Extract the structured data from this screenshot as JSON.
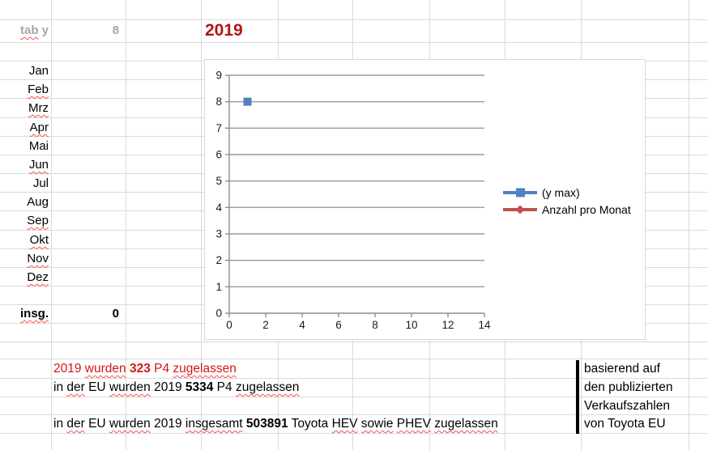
{
  "cells": {
    "tab_label_runs": [
      {
        "t": "tab",
        "sq": true
      },
      {
        "t": " y"
      }
    ],
    "tab_value": "8",
    "year_title": "2019",
    "months": [
      {
        "label": "Jan",
        "misspelled": false
      },
      {
        "label": "Feb",
        "misspelled": true
      },
      {
        "label": "Mrz",
        "misspelled": true
      },
      {
        "label": "Apr",
        "misspelled": true
      },
      {
        "label": "Mai",
        "misspelled": false
      },
      {
        "label": "Jun",
        "misspelled": true
      },
      {
        "label": "Jul",
        "misspelled": false
      },
      {
        "label": "Aug",
        "misspelled": false
      },
      {
        "label": "Sep",
        "misspelled": true
      },
      {
        "label": "Okt",
        "misspelled": true
      },
      {
        "label": "Nov",
        "misspelled": true
      },
      {
        "label": "Dez",
        "misspelled": true
      }
    ],
    "total_label_runs": [
      {
        "t": "insg.",
        "sq": true,
        "b": true
      }
    ],
    "total_value": "0"
  },
  "colors": {
    "year_red": "#b41414",
    "note_red": "#d41616",
    "muted_gray": "#a6a6a6",
    "sheet_grid": "#dadada",
    "chart_grid": "#9a9a9a",
    "chart_axis": "#8e8e8e",
    "squiggle": "#ff5050"
  },
  "chart_data": {
    "type": "scatter",
    "title": "",
    "xlabel": "",
    "ylabel": "",
    "xlim": [
      0,
      14
    ],
    "ylim": [
      0,
      9
    ],
    "x_tick_labels": [
      "0",
      "2",
      "4",
      "6",
      "8",
      "10",
      "12",
      "14"
    ],
    "y_tick_labels": [
      "0",
      "1",
      "2",
      "3",
      "4",
      "5",
      "6",
      "7",
      "8",
      "9"
    ],
    "grid": true,
    "legend_position": "right-middle",
    "series": [
      {
        "name": "(y max)",
        "marker": "square",
        "color": "#4f81bd",
        "points": [
          {
            "x": 1,
            "y": 8
          }
        ]
      },
      {
        "name": "Anzahl pro Monat",
        "marker": "diamond",
        "color": "#c0504d",
        "points": []
      }
    ]
  },
  "notes": {
    "line1_color": "#d41616",
    "line1_runs": [
      {
        "t": "2019 "
      },
      {
        "t": "wurden",
        "sq": true
      },
      {
        "t": " "
      },
      {
        "t": "323",
        "b": true
      },
      {
        "t": " P4 "
      },
      {
        "t": "zugelassen",
        "sq": true
      }
    ],
    "line2_runs": [
      {
        "t": "in "
      },
      {
        "t": "der",
        "sq": true
      },
      {
        "t": " EU "
      },
      {
        "t": "wurden",
        "sq": true
      },
      {
        "t": " 2019 "
      },
      {
        "t": "5334",
        "b": true
      },
      {
        "t": " P4 "
      },
      {
        "t": "zugelassen",
        "sq": true
      }
    ],
    "line3_runs": [
      {
        "t": "in "
      },
      {
        "t": "der",
        "sq": true
      },
      {
        "t": " EU "
      },
      {
        "t": "wurden",
        "sq": true
      },
      {
        "t": " 2019 "
      },
      {
        "t": "insgesamt",
        "sq": true
      },
      {
        "t": " "
      },
      {
        "t": "503891",
        "b": true
      },
      {
        "t": " Toyota "
      },
      {
        "t": "HEV",
        "sq": true
      },
      {
        "t": " "
      },
      {
        "t": "sowie",
        "sq": true
      },
      {
        "t": " "
      },
      {
        "t": "PHEV",
        "sq": true
      },
      {
        "t": " "
      },
      {
        "t": "zugelassen",
        "sq": true
      }
    ]
  },
  "side_note": {
    "lines": [
      "basierend auf",
      "den publizierten",
      "Verkaufszahlen",
      "von Toyota EU"
    ]
  }
}
